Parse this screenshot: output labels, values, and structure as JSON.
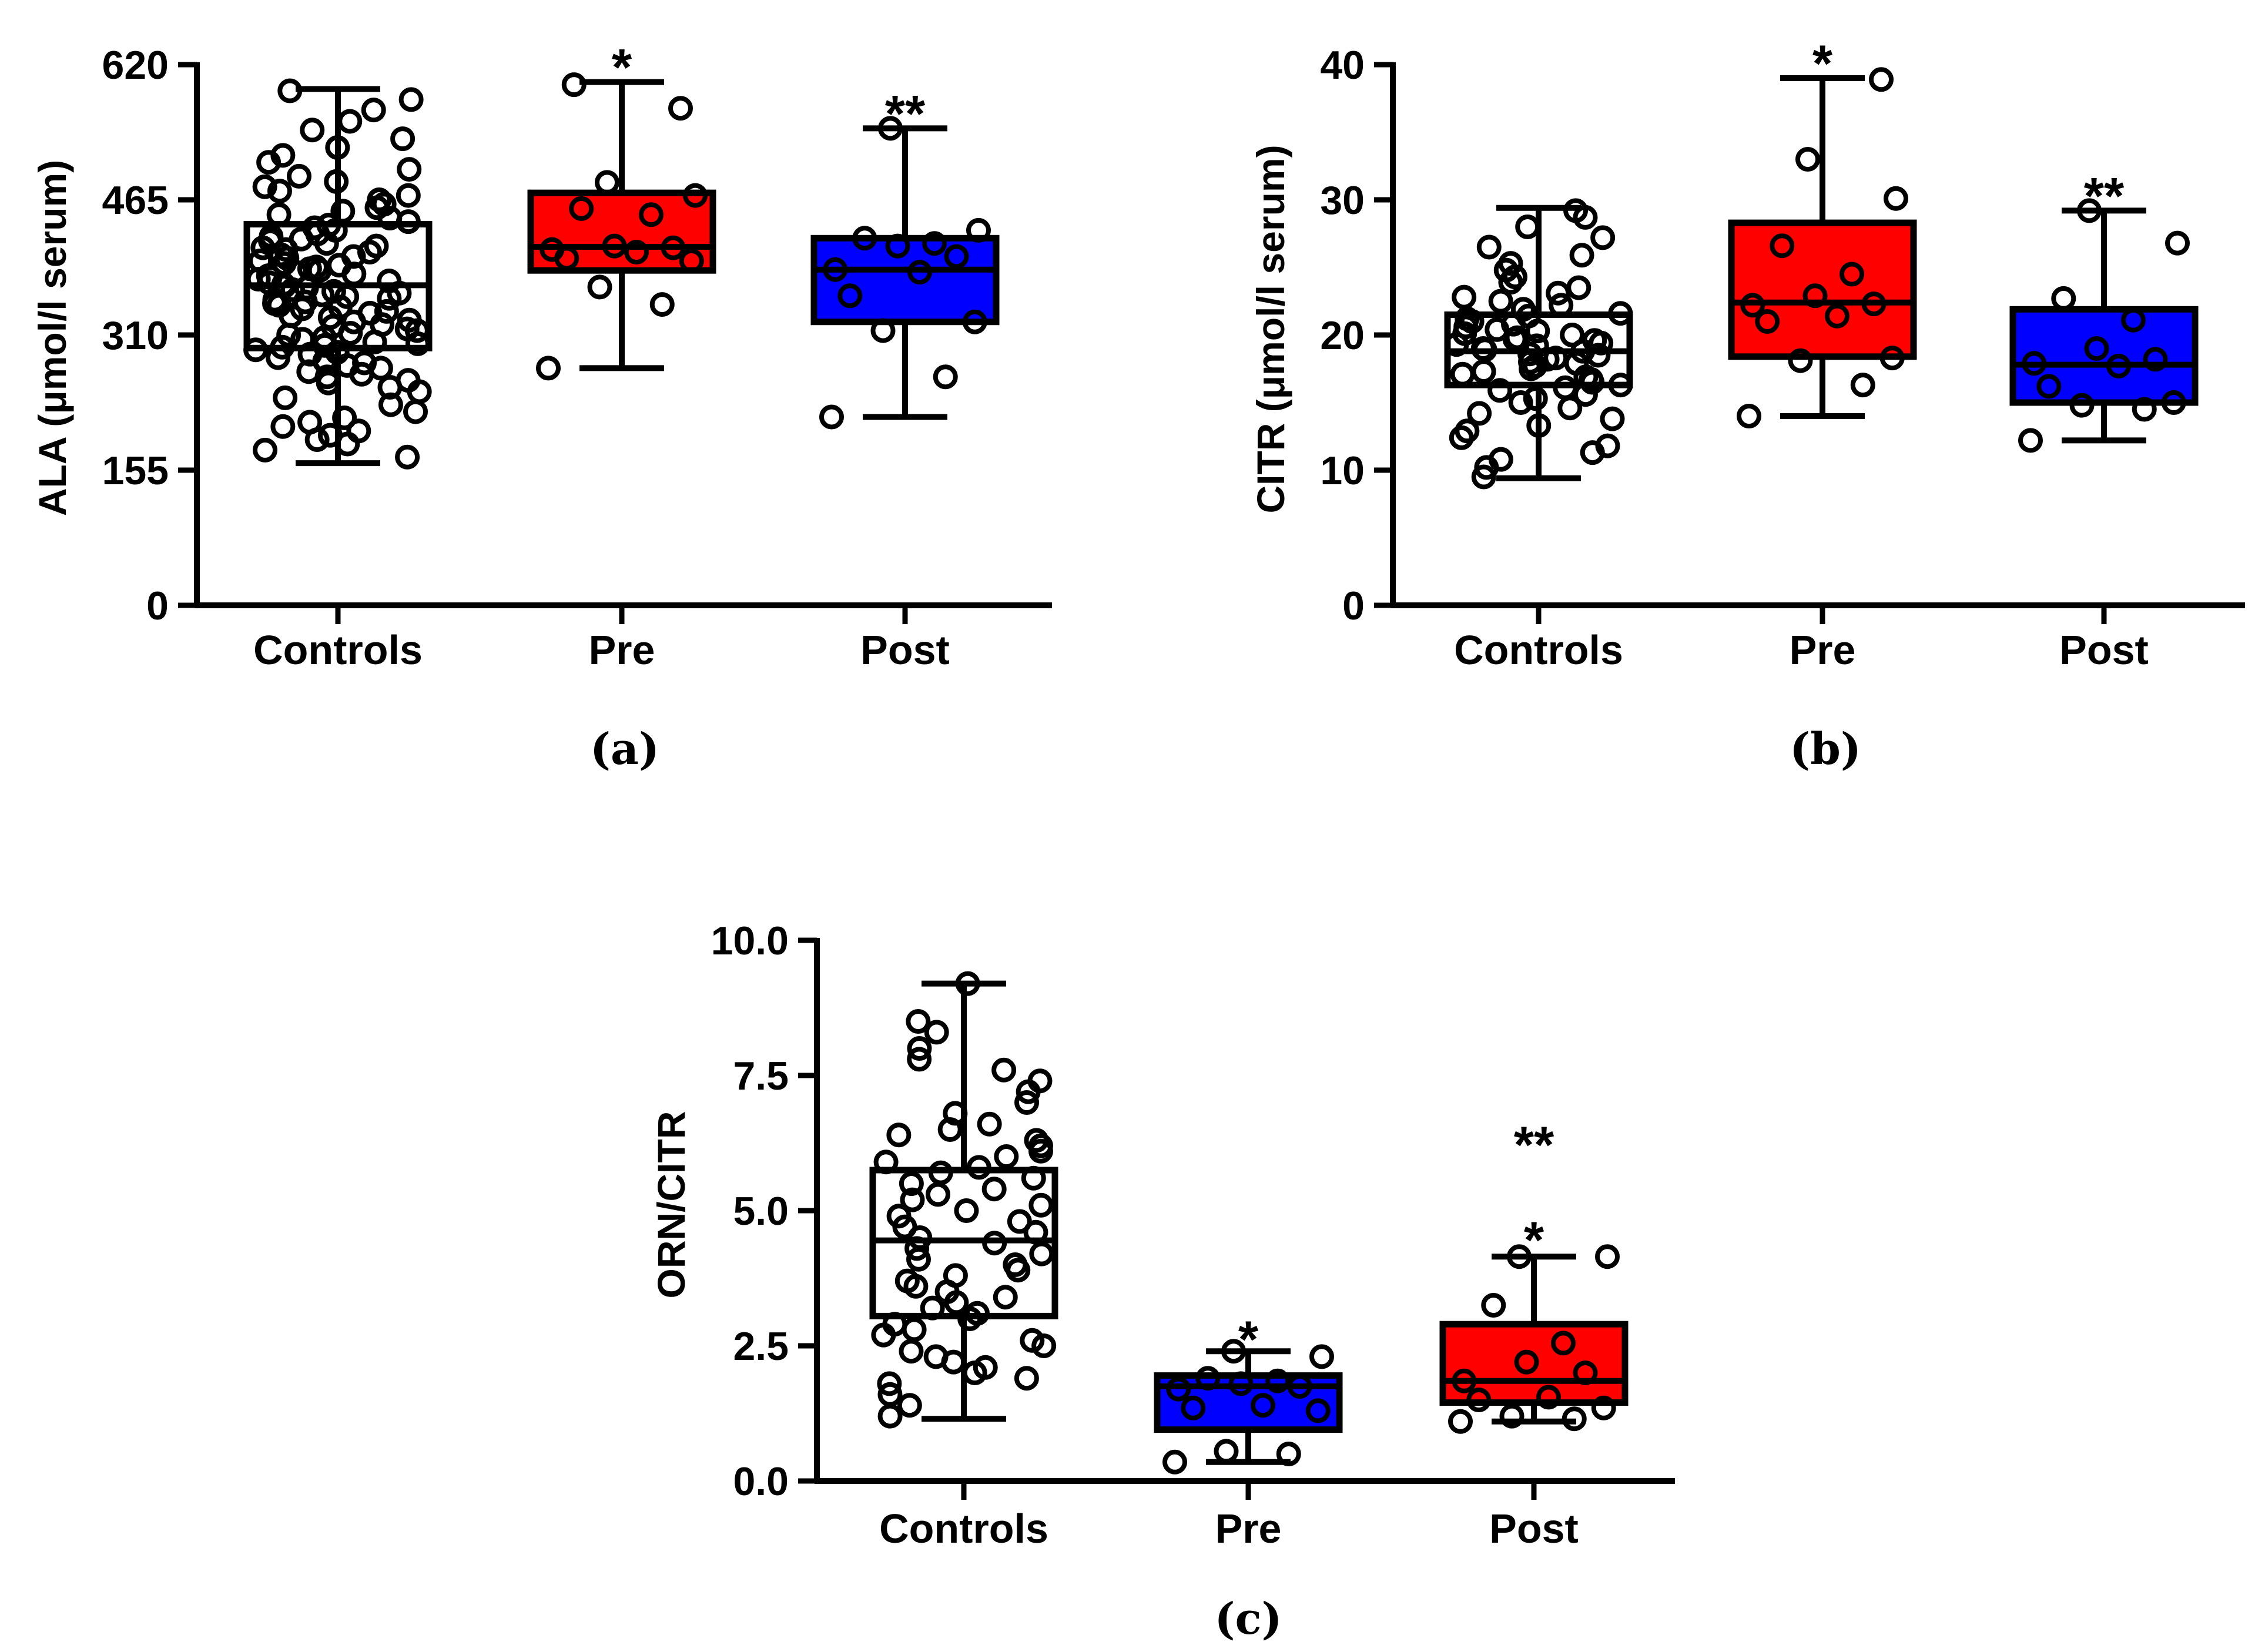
{
  "chart_data": [
    {
      "type": "box",
      "panel": "(a)",
      "ylabel": "ALA (μmol/l serum)",
      "ylim": [
        0,
        620
      ],
      "yticks": [
        0,
        155,
        310,
        465,
        620
      ],
      "ytick_labels": [
        "0",
        "155",
        "310",
        "465",
        "620"
      ],
      "categories": [
        "Controls",
        "Pre",
        "Post"
      ],
      "colors": [
        "#ffffff",
        "#ff0000",
        "#0000ff"
      ],
      "boxes": [
        {
          "min": 163,
          "q1": 295,
          "median": 367,
          "q3": 437,
          "max": 592
        },
        {
          "min": 272,
          "q1": 384,
          "median": 411,
          "q3": 473,
          "max": 600
        },
        {
          "min": 216,
          "q1": 325,
          "median": 385,
          "q3": 421,
          "max": 547
        }
      ],
      "significance": [
        "",
        "*",
        "**"
      ],
      "points": [
        [
          170,
          178,
          185,
          190,
          195,
          200,
          205,
          210,
          215,
          222,
          230,
          238,
          245,
          250,
          255,
          258,
          262,
          265,
          268,
          272,
          275,
          278,
          280,
          284,
          288,
          290,
          293,
          296,
          298,
          300,
          302,
          305,
          307,
          310,
          312,
          315,
          317,
          320,
          322,
          325,
          327,
          330,
          332,
          335,
          337,
          340,
          342,
          344,
          346,
          348,
          350,
          352,
          354,
          356,
          358,
          360,
          362,
          364,
          366,
          368,
          370,
          372,
          374,
          376,
          378,
          380,
          382,
          384,
          386,
          388,
          390,
          392,
          395,
          398,
          400,
          402,
          405,
          408,
          410,
          412,
          415,
          418,
          420,
          423,
          426,
          430,
          433,
          436,
          440,
          444,
          448,
          452,
          456,
          460,
          465,
          470,
          475,
          480,
          486,
          492,
          500,
          508,
          516,
          525,
          535,
          545,
          555,
          568,
          580,
          590
        ],
        [
          272,
          345,
          365,
          395,
          398,
          405,
          408,
          410,
          412,
          448,
          455,
          470,
          485,
          570,
          597
        ],
        [
          216,
          262,
          315,
          325,
          355,
          382,
          385,
          400,
          412,
          415,
          421,
          430,
          547
        ]
      ]
    },
    {
      "type": "box",
      "panel": "(b)",
      "ylabel": "CITR (μmol/l serum)",
      "ylim": [
        0,
        40
      ],
      "yticks": [
        0,
        10,
        20,
        30,
        40
      ],
      "ytick_labels": [
        "0",
        "10",
        "20",
        "30",
        "40"
      ],
      "categories": [
        "Controls",
        "Pre",
        "Post"
      ],
      "colors": [
        "#ffffff",
        "#ff0000",
        "#0000ff"
      ],
      "boxes": [
        {
          "min": 9.4,
          "q1": 16.3,
          "median": 18.8,
          "q3": 21.5,
          "max": 29.4
        },
        {
          "min": 14.0,
          "q1": 18.4,
          "median": 22.4,
          "q3": 28.3,
          "max": 39.0
        },
        {
          "min": 12.2,
          "q1": 15.0,
          "median": 17.8,
          "q3": 21.9,
          "max": 29.2
        }
      ],
      "significance": [
        "",
        "*",
        "**"
      ],
      "points": [
        [
          9.5,
          10.2,
          10.8,
          11.3,
          11.8,
          12.4,
          12.9,
          13.3,
          13.8,
          14.2,
          14.6,
          15.0,
          15.3,
          15.6,
          15.9,
          16.1,
          16.3,
          16.5,
          16.7,
          16.9,
          17.1,
          17.3,
          17.5,
          17.7,
          17.9,
          18.0,
          18.2,
          18.3,
          18.5,
          18.6,
          18.8,
          18.9,
          19.0,
          19.2,
          19.3,
          19.4,
          19.6,
          19.7,
          19.8,
          20.0,
          20.1,
          20.3,
          20.4,
          20.6,
          20.8,
          21.0,
          21.2,
          21.4,
          21.6,
          21.9,
          22.2,
          22.5,
          22.8,
          23.1,
          23.5,
          23.9,
          24.3,
          24.8,
          25.3,
          25.9,
          26.5,
          27.2,
          28.0,
          28.7,
          29.2
        ],
        [
          14.0,
          16.3,
          18.1,
          18.3,
          21.0,
          21.4,
          22.2,
          22.3,
          22.9,
          24.5,
          26.6,
          30.1,
          33.0,
          38.9
        ],
        [
          12.2,
          14.5,
          14.8,
          15.0,
          16.2,
          17.7,
          17.9,
          18.2,
          19.0,
          21.1,
          22.7,
          26.8,
          29.2
        ]
      ]
    },
    {
      "type": "box",
      "panel": "(c)",
      "ylabel": "ORN/CITR",
      "ylim": [
        0,
        10
      ],
      "yticks": [
        0,
        2.5,
        5,
        7.5,
        10
      ],
      "ytick_labels": [
        "0.0",
        "2.5",
        "5.0",
        "7.5",
        "10.0"
      ],
      "categories": [
        "Controls",
        "Pre",
        "Post"
      ],
      "colors": [
        "#ffffff",
        "#0000ff",
        "#ff0000"
      ],
      "boxes": [
        {
          "min": 1.15,
          "q1": 3.05,
          "median": 4.45,
          "q3": 5.75,
          "max": 9.2
        },
        {
          "min": 0.35,
          "q1": 0.95,
          "median": 1.75,
          "q3": 1.95,
          "max": 2.4
        },
        {
          "min": 1.1,
          "q1": 1.45,
          "median": 1.85,
          "q3": 2.9,
          "max": 4.15
        }
      ],
      "significance": [
        "",
        "*",
        "**"
      ],
      "significance_extra": [
        "",
        "",
        "*"
      ],
      "points": [
        [
          1.2,
          1.4,
          1.6,
          1.8,
          1.9,
          2.0,
          2.1,
          2.2,
          2.3,
          2.4,
          2.5,
          2.6,
          2.7,
          2.8,
          2.9,
          3.0,
          3.1,
          3.2,
          3.3,
          3.4,
          3.5,
          3.6,
          3.7,
          3.8,
          3.9,
          4.0,
          4.1,
          4.2,
          4.3,
          4.4,
          4.5,
          4.6,
          4.7,
          4.8,
          4.9,
          5.0,
          5.1,
          5.2,
          5.3,
          5.4,
          5.5,
          5.6,
          5.7,
          5.8,
          5.9,
          6.0,
          6.1,
          6.2,
          6.3,
          6.4,
          6.5,
          6.6,
          6.8,
          7.0,
          7.2,
          7.4,
          7.6,
          7.8,
          8.0,
          8.3,
          8.5,
          9.2
        ],
        [
          0.35,
          0.5,
          0.55,
          1.3,
          1.35,
          1.4,
          1.7,
          1.75,
          1.8,
          1.85,
          1.9,
          2.3,
          2.4
        ],
        [
          1.1,
          1.15,
          1.2,
          1.35,
          1.5,
          1.55,
          1.85,
          2.0,
          2.2,
          2.55,
          3.25,
          4.15,
          4.15
        ]
      ]
    }
  ],
  "panel_labels": [
    "(a)",
    "(b)",
    "(c)"
  ]
}
